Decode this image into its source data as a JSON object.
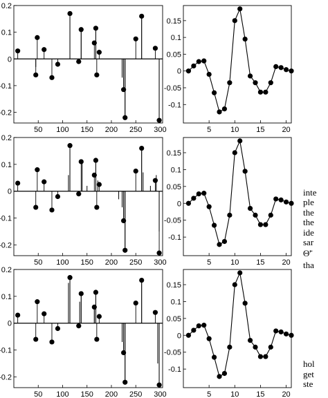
{
  "colors": {
    "ink": "#000000",
    "background": "#ffffff"
  },
  "chart_data": [
    {
      "type": "scatter",
      "subtype": "stem",
      "panel": "row1-left",
      "xlim": [
        0,
        305
      ],
      "ylim": [
        -0.24,
        0.2
      ],
      "xticks": [
        "50",
        "100",
        "150",
        "200",
        "250",
        "300"
      ],
      "yticks": [
        "0.2",
        "0.1",
        "0",
        "-0.1",
        "-0.2"
      ],
      "grid": false,
      "dots": [
        [
          8,
          0.03
        ],
        [
          45,
          -0.06
        ],
        [
          48,
          0.08
        ],
        [
          62,
          0.035
        ],
        [
          78,
          -0.07
        ],
        [
          90,
          -0.02
        ],
        [
          115,
          0.17
        ],
        [
          133,
          -0.01
        ],
        [
          138,
          0.11
        ],
        [
          165,
          0.06
        ],
        [
          168,
          0.115
        ],
        [
          170,
          -0.06
        ],
        [
          175,
          0.025
        ],
        [
          225,
          -0.115
        ],
        [
          228,
          -0.22
        ],
        [
          250,
          0.075
        ],
        [
          262,
          0.16
        ],
        [
          290,
          0.04
        ],
        [
          298,
          -0.23
        ]
      ],
      "lines": [
        [
          45,
          -0.03
        ],
        [
          115,
          0.17
        ],
        [
          138,
          0.11
        ],
        [
          168,
          0.115
        ],
        [
          222,
          -0.07
        ],
        [
          225,
          -0.115
        ],
        [
          228,
          -0.22
        ],
        [
          262,
          0.16
        ],
        [
          298,
          -0.23
        ]
      ]
    },
    {
      "type": "line",
      "panel": "row1-right",
      "xlim": [
        0,
        21
      ],
      "ylim": [
        -0.155,
        0.195
      ],
      "xticks": [
        "5",
        "10",
        "15",
        "20"
      ],
      "yticks": [
        "0.15",
        "0.1",
        "0.05",
        "0",
        "-0.05",
        "-0.1"
      ],
      "grid": false,
      "x": [
        1,
        2,
        3,
        4,
        5,
        6,
        7,
        8,
        9,
        10,
        11,
        12,
        13,
        14,
        15,
        16,
        17,
        18,
        19,
        20,
        21
      ],
      "y": [
        0.0,
        0.015,
        0.028,
        0.03,
        -0.01,
        -0.065,
        -0.122,
        -0.113,
        -0.035,
        0.15,
        0.185,
        0.095,
        -0.015,
        -0.035,
        -0.063,
        -0.063,
        -0.035,
        0.013,
        0.01,
        0.004,
        0.0
      ]
    },
    {
      "type": "scatter",
      "subtype": "stem",
      "panel": "row2-left",
      "xlim": [
        0,
        305
      ],
      "ylim": [
        -0.24,
        0.2
      ],
      "xticks": [
        "50",
        "100",
        "150",
        "200",
        "250",
        "300"
      ],
      "yticks": [
        "0.2",
        "0.1",
        "0",
        "-0.1",
        "-0.2"
      ],
      "grid": false,
      "dots": [
        [
          8,
          0.03
        ],
        [
          45,
          -0.06
        ],
        [
          48,
          0.08
        ],
        [
          62,
          0.035
        ],
        [
          78,
          -0.07
        ],
        [
          90,
          -0.02
        ],
        [
          115,
          0.17
        ],
        [
          133,
          -0.01
        ],
        [
          138,
          0.11
        ],
        [
          165,
          0.06
        ],
        [
          168,
          0.115
        ],
        [
          170,
          -0.06
        ],
        [
          175,
          0.025
        ],
        [
          225,
          -0.11
        ],
        [
          228,
          -0.22
        ],
        [
          250,
          0.075
        ],
        [
          262,
          0.16
        ],
        [
          290,
          0.04
        ],
        [
          298,
          -0.23
        ]
      ],
      "lines": [
        [
          112,
          0.06
        ],
        [
          115,
          0.17
        ],
        [
          140,
          0.11
        ],
        [
          150,
          0.02
        ],
        [
          168,
          0.115
        ],
        [
          172,
          0.04
        ],
        [
          215,
          -0.03
        ],
        [
          222,
          -0.06
        ],
        [
          225,
          -0.11
        ],
        [
          228,
          -0.22
        ],
        [
          262,
          0.16
        ],
        [
          265,
          0.07
        ],
        [
          280,
          0.02
        ],
        [
          292,
          0.06
        ],
        [
          298,
          -0.15
        ]
      ]
    },
    {
      "type": "line",
      "panel": "row2-right",
      "xlim": [
        0,
        21
      ],
      "ylim": [
        -0.155,
        0.195
      ],
      "xticks": [
        "5",
        "10",
        "15",
        "20"
      ],
      "yticks": [
        "0.15",
        "0.1",
        "0.05",
        "0",
        "-0.05",
        "-0.1"
      ],
      "grid": false,
      "x": [
        1,
        2,
        3,
        4,
        5,
        6,
        7,
        8,
        9,
        10,
        11,
        12,
        13,
        14,
        15,
        16,
        17,
        18,
        19,
        20,
        21
      ],
      "y": [
        0.0,
        0.015,
        0.028,
        0.03,
        -0.01,
        -0.065,
        -0.122,
        -0.113,
        -0.035,
        0.15,
        0.185,
        0.095,
        -0.015,
        -0.035,
        -0.063,
        -0.063,
        -0.035,
        0.013,
        0.01,
        0.004,
        0.0
      ]
    },
    {
      "type": "scatter",
      "subtype": "stem",
      "panel": "row3-left",
      "xlim": [
        0,
        305
      ],
      "ylim": [
        -0.24,
        0.2
      ],
      "xticks": [
        "50",
        "100",
        "150",
        "200",
        "250",
        "300"
      ],
      "yticks": [
        "0.2",
        "0.1",
        "0",
        "-0.1",
        "-0.2"
      ],
      "grid": false,
      "dots": [
        [
          8,
          0.03
        ],
        [
          45,
          -0.06
        ],
        [
          48,
          0.08
        ],
        [
          62,
          0.035
        ],
        [
          78,
          -0.07
        ],
        [
          90,
          -0.02
        ],
        [
          115,
          0.17
        ],
        [
          133,
          -0.01
        ],
        [
          138,
          0.11
        ],
        [
          165,
          0.06
        ],
        [
          168,
          0.115
        ],
        [
          170,
          -0.06
        ],
        [
          175,
          0.025
        ],
        [
          225,
          -0.11
        ],
        [
          228,
          -0.22
        ],
        [
          250,
          0.075
        ],
        [
          262,
          0.16
        ],
        [
          290,
          0.04
        ],
        [
          298,
          -0.23
        ]
      ],
      "lines": [
        [
          112,
          0.15
        ],
        [
          115,
          0.17
        ],
        [
          135,
          0.08
        ],
        [
          138,
          0.11
        ],
        [
          165,
          0.06
        ],
        [
          168,
          0.115
        ],
        [
          222,
          -0.07
        ],
        [
          225,
          -0.11
        ],
        [
          228,
          -0.22
        ],
        [
          262,
          0.16
        ],
        [
          295,
          -0.15
        ],
        [
          298,
          -0.23
        ]
      ]
    },
    {
      "type": "line",
      "panel": "row3-right",
      "xlim": [
        0,
        21
      ],
      "ylim": [
        -0.155,
        0.195
      ],
      "xticks": [
        "5",
        "10",
        "15",
        "20"
      ],
      "yticks": [
        "0.15",
        "0.1",
        "0.05",
        "0",
        "-0.05",
        "-0.1"
      ],
      "grid": false,
      "x": [
        1,
        2,
        3,
        4,
        5,
        6,
        7,
        8,
        9,
        10,
        11,
        12,
        13,
        14,
        15,
        16,
        17,
        18,
        19,
        20,
        21
      ],
      "y": [
        0.0,
        0.015,
        0.028,
        0.03,
        -0.01,
        -0.065,
        -0.122,
        -0.113,
        -0.035,
        0.15,
        0.185,
        0.095,
        -0.015,
        -0.035,
        -0.063,
        -0.063,
        -0.035,
        0.013,
        0.01,
        0.004,
        0.0
      ]
    }
  ],
  "side_text": [
    "inte",
    "ple",
    "the",
    "the",
    "ide",
    "sar",
    "Θ̃′",
    "tha",
    "hol",
    "get",
    "ste"
  ]
}
